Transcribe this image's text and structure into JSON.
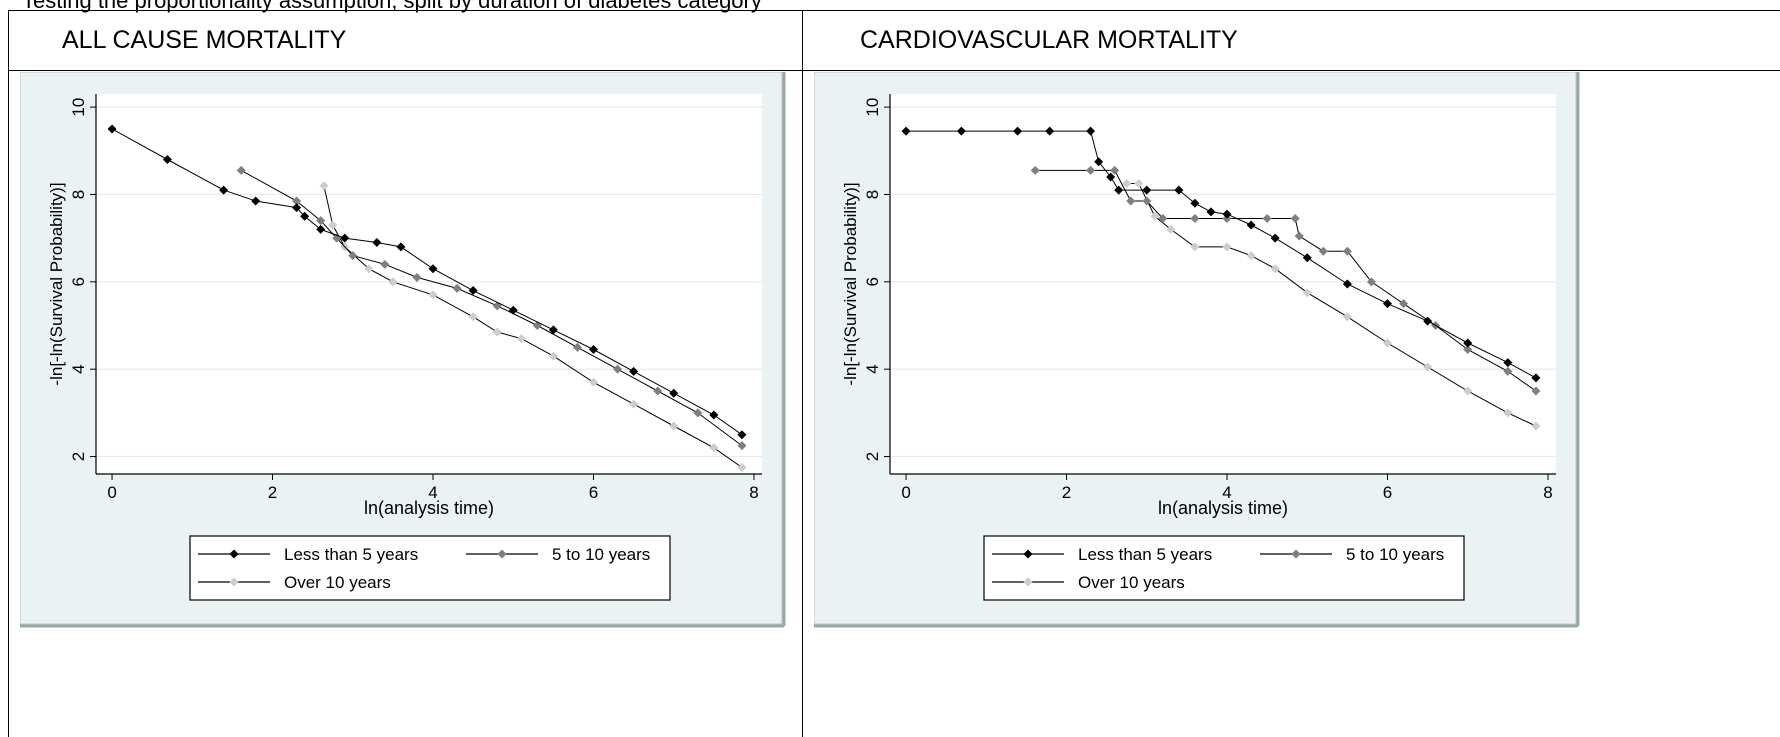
{
  "caption": "Testing the proportionality assumption, split by duration of diabetes category",
  "panels": [
    {
      "title": "ALL CAUSE MORTALITY"
    },
    {
      "title": "CARDIOVASCULAR MORTALITY"
    }
  ],
  "colors": {
    "less5": "#000000",
    "five10": "#7f7f7f",
    "over10": "#cccccc",
    "plot_bg": "#ffffff",
    "outer_bg": "#eaf2f3",
    "grid": "#e3ecee"
  },
  "chart_data": [
    {
      "type": "line",
      "title": "ALL CAUSE MORTALITY",
      "xlabel": "ln(analysis time)",
      "ylabel": "-ln[-ln(Survival Probability)]",
      "xlim": [
        -0.2,
        8.1
      ],
      "ylim": [
        1.6,
        10.3
      ],
      "xticks": [
        0,
        2,
        4,
        6,
        8
      ],
      "yticks": [
        2,
        4,
        6,
        8,
        10
      ],
      "grid": true,
      "legend_position": "bottom",
      "series": [
        {
          "name": "Less than 5 years",
          "color": "#000000",
          "x": [
            0,
            0.69,
            1.39,
            1.79,
            2.3,
            2.4,
            2.6,
            2.9,
            3.3,
            3.6,
            4.0,
            4.5,
            5.0,
            5.5,
            6.0,
            6.5,
            7.0,
            7.5,
            7.85
          ],
          "y": [
            9.5,
            8.8,
            8.1,
            7.85,
            7.7,
            7.5,
            7.2,
            7.0,
            6.9,
            6.8,
            6.3,
            5.8,
            5.35,
            4.9,
            4.45,
            3.95,
            3.45,
            2.95,
            2.5
          ]
        },
        {
          "name": "5 to 10 years",
          "color": "#7f7f7f",
          "x": [
            1.61,
            2.3,
            2.6,
            2.8,
            3.0,
            3.4,
            3.8,
            4.3,
            4.8,
            5.3,
            5.8,
            6.3,
            6.8,
            7.3,
            7.85
          ],
          "y": [
            8.55,
            7.85,
            7.4,
            7.0,
            6.6,
            6.4,
            6.1,
            5.85,
            5.45,
            5.0,
            4.5,
            4.0,
            3.5,
            3.0,
            2.25
          ]
        },
        {
          "name": "Over 10 years",
          "color": "#cccccc",
          "x": [
            2.64,
            2.75,
            2.9,
            3.2,
            3.5,
            4.0,
            4.5,
            4.8,
            5.1,
            5.5,
            6.0,
            6.5,
            7.0,
            7.5,
            7.85
          ],
          "y": [
            8.2,
            7.3,
            6.8,
            6.3,
            6.0,
            5.7,
            5.2,
            4.85,
            4.7,
            4.3,
            3.7,
            3.2,
            2.7,
            2.2,
            1.75
          ]
        }
      ]
    },
    {
      "type": "line",
      "title": "CARDIOVASCULAR MORTALITY",
      "xlabel": "ln(analysis time)",
      "ylabel": "-ln[-ln(Survival Probability)]",
      "xlim": [
        -0.2,
        8.1
      ],
      "ylim": [
        1.6,
        10.3
      ],
      "xticks": [
        0,
        2,
        4,
        6,
        8
      ],
      "yticks": [
        2,
        4,
        6,
        8,
        10
      ],
      "grid": true,
      "legend_position": "bottom",
      "series": [
        {
          "name": "Less than 5 years",
          "color": "#000000",
          "x": [
            0,
            0.69,
            1.39,
            1.79,
            2.3,
            2.4,
            2.55,
            2.65,
            3.0,
            3.4,
            3.6,
            3.8,
            4.0,
            4.3,
            4.6,
            5.0,
            5.5,
            6.0,
            6.5,
            7.0,
            7.5,
            7.85
          ],
          "y": [
            9.45,
            9.45,
            9.45,
            9.45,
            9.45,
            8.75,
            8.4,
            8.1,
            8.1,
            8.1,
            7.8,
            7.6,
            7.55,
            7.3,
            7.0,
            6.55,
            5.95,
            5.5,
            5.1,
            4.6,
            4.15,
            3.8
          ]
        },
        {
          "name": "5 to 10 years",
          "color": "#7f7f7f",
          "x": [
            1.61,
            2.3,
            2.6,
            2.8,
            3.0,
            3.2,
            3.6,
            4.0,
            4.5,
            4.85,
            4.9,
            5.2,
            5.5,
            5.8,
            6.2,
            6.6,
            7.0,
            7.5,
            7.85
          ],
          "y": [
            8.55,
            8.55,
            8.55,
            7.85,
            7.85,
            7.45,
            7.45,
            7.45,
            7.45,
            7.45,
            7.05,
            6.7,
            6.7,
            6.0,
            5.5,
            5.0,
            4.45,
            3.95,
            3.5
          ]
        },
        {
          "name": "Over 10 years",
          "color": "#cccccc",
          "x": [
            2.75,
            2.9,
            3.1,
            3.3,
            3.6,
            4.0,
            4.3,
            4.6,
            5.0,
            5.5,
            6.0,
            6.5,
            7.0,
            7.5,
            7.85
          ],
          "y": [
            8.25,
            8.25,
            7.5,
            7.2,
            6.8,
            6.8,
            6.6,
            6.3,
            5.75,
            5.2,
            4.6,
            4.05,
            3.5,
            3.0,
            2.7
          ]
        }
      ]
    }
  ]
}
